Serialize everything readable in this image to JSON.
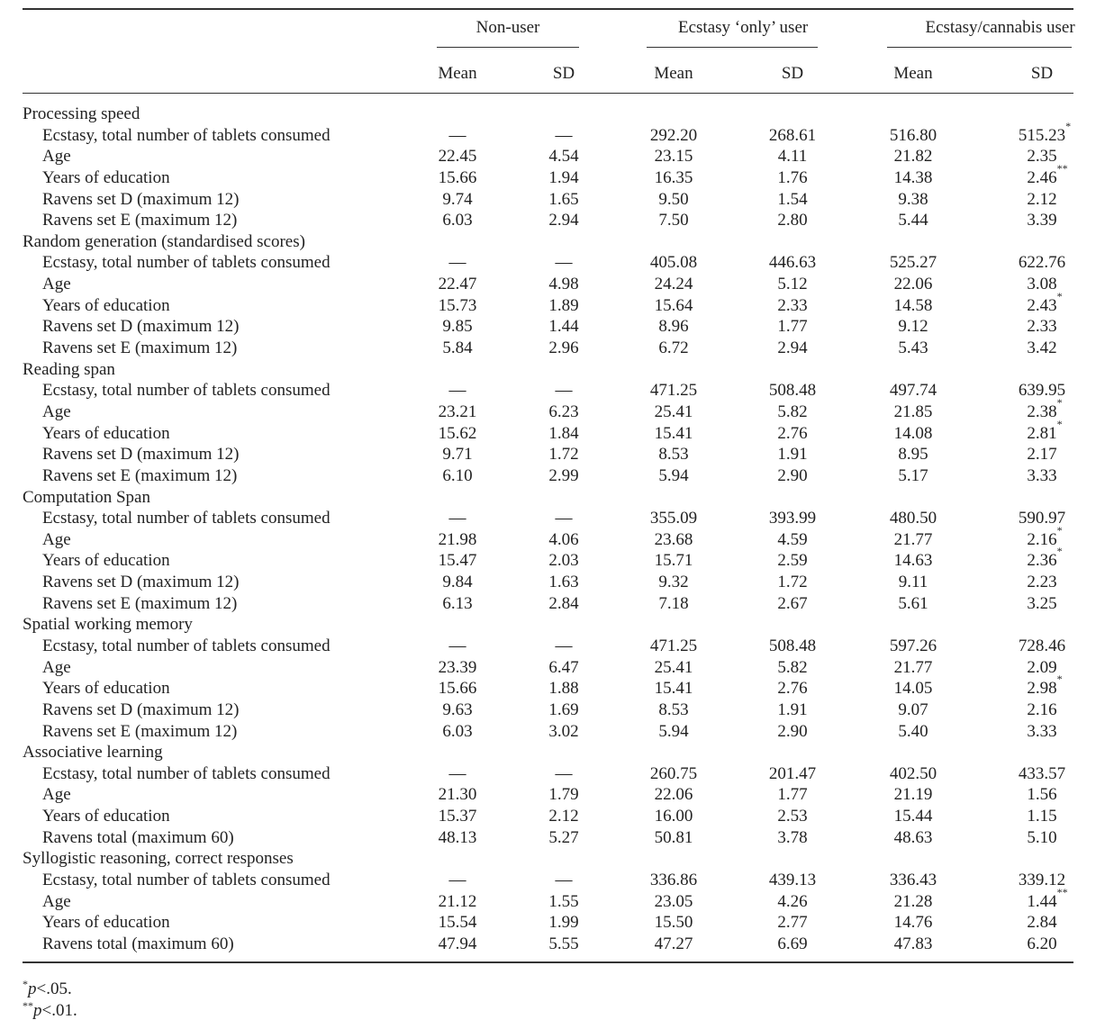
{
  "table": {
    "column_groups": [
      {
        "title": "Non-user",
        "columns": [
          "Mean",
          "SD"
        ]
      },
      {
        "title": "Ecstasy ‘only’ user",
        "columns": [
          "Mean",
          "SD"
        ]
      },
      {
        "title": "Ecstasy/cannabis user",
        "columns": [
          "Mean",
          "SD"
        ]
      }
    ],
    "sections": [
      {
        "title": "Processing speed",
        "rows": [
          {
            "label": "Ecstasy, total number of tablets consumed",
            "cells": [
              "—",
              "—",
              "292.20",
              "268.61",
              "516.80",
              {
                "value": "515.23",
                "sup": "*"
              }
            ]
          },
          {
            "label": "Age",
            "cells": [
              "22.45",
              "4.54",
              "23.15",
              "4.11",
              "21.82",
              "2.35"
            ]
          },
          {
            "label": "Years of education",
            "cells": [
              "15.66",
              "1.94",
              "16.35",
              "1.76",
              "14.38",
              {
                "value": "2.46",
                "sup": "**"
              }
            ]
          },
          {
            "label": "Ravens set D (maximum 12)",
            "cells": [
              "9.74",
              "1.65",
              "9.50",
              "1.54",
              "9.38",
              "2.12"
            ]
          },
          {
            "label": "Ravens set E (maximum 12)",
            "cells": [
              "6.03",
              "2.94",
              "7.50",
              "2.80",
              "5.44",
              "3.39"
            ]
          }
        ]
      },
      {
        "title": "Random generation (standardised scores)",
        "rows": [
          {
            "label": "Ecstasy, total number of tablets consumed",
            "cells": [
              "—",
              "—",
              "405.08",
              "446.63",
              "525.27",
              "622.76"
            ]
          },
          {
            "label": "Age",
            "cells": [
              "22.47",
              "4.98",
              "24.24",
              "5.12",
              "22.06",
              "3.08"
            ]
          },
          {
            "label": "Years of education",
            "cells": [
              "15.73",
              "1.89",
              "15.64",
              "2.33",
              "14.58",
              {
                "value": "2.43",
                "sup": "*"
              }
            ]
          },
          {
            "label": "Ravens set D (maximum 12)",
            "cells": [
              "9.85",
              "1.44",
              "8.96",
              "1.77",
              "9.12",
              "2.33"
            ]
          },
          {
            "label": "Ravens set E (maximum 12)",
            "cells": [
              "5.84",
              "2.96",
              "6.72",
              "2.94",
              "5.43",
              "3.42"
            ]
          }
        ]
      },
      {
        "title": "Reading span",
        "rows": [
          {
            "label": "Ecstasy, total number of tablets consumed",
            "cells": [
              "—",
              "—",
              "471.25",
              "508.48",
              "497.74",
              "639.95"
            ]
          },
          {
            "label": "Age",
            "cells": [
              "23.21",
              "6.23",
              "25.41",
              "5.82",
              "21.85",
              {
                "value": "2.38",
                "sup": "*"
              }
            ]
          },
          {
            "label": "Years of education",
            "cells": [
              "15.62",
              "1.84",
              "15.41",
              "2.76",
              "14.08",
              {
                "value": "2.81",
                "sup": "*"
              }
            ]
          },
          {
            "label": "Ravens set D (maximum 12)",
            "cells": [
              "9.71",
              "1.72",
              "8.53",
              "1.91",
              "8.95",
              "2.17"
            ]
          },
          {
            "label": "Ravens set E (maximum 12)",
            "cells": [
              "6.10",
              "2.99",
              "5.94",
              "2.90",
              "5.17",
              "3.33"
            ]
          }
        ]
      },
      {
        "title": "Computation Span",
        "rows": [
          {
            "label": "Ecstasy, total number of tablets consumed",
            "cells": [
              "—",
              "—",
              "355.09",
              "393.99",
              "480.50",
              "590.97"
            ]
          },
          {
            "label": "Age",
            "cells": [
              "21.98",
              "4.06",
              "23.68",
              "4.59",
              "21.77",
              {
                "value": "2.16",
                "sup": "*"
              }
            ]
          },
          {
            "label": "Years of education",
            "cells": [
              "15.47",
              "2.03",
              "15.71",
              "2.59",
              "14.63",
              {
                "value": "2.36",
                "sup": "*"
              }
            ]
          },
          {
            "label": "Ravens set D (maximum 12)",
            "cells": [
              "9.84",
              "1.63",
              "9.32",
              "1.72",
              "9.11",
              "2.23"
            ]
          },
          {
            "label": "Ravens set E (maximum 12)",
            "cells": [
              "6.13",
              "2.84",
              "7.18",
              "2.67",
              "5.61",
              "3.25"
            ]
          }
        ]
      },
      {
        "title": "Spatial working memory",
        "rows": [
          {
            "label": "Ecstasy, total number of tablets consumed",
            "cells": [
              "—",
              "—",
              "471.25",
              "508.48",
              "597.26",
              "728.46"
            ]
          },
          {
            "label": "Age",
            "cells": [
              "23.39",
              "6.47",
              "25.41",
              "5.82",
              "21.77",
              "2.09"
            ]
          },
          {
            "label": "Years of education",
            "cells": [
              "15.66",
              "1.88",
              "15.41",
              "2.76",
              "14.05",
              {
                "value": "2.98",
                "sup": "*"
              }
            ]
          },
          {
            "label": "Ravens set D (maximum 12)",
            "cells": [
              "9.63",
              "1.69",
              "8.53",
              "1.91",
              "9.07",
              "2.16"
            ]
          },
          {
            "label": "Ravens set E (maximum 12)",
            "cells": [
              "6.03",
              "3.02",
              "5.94",
              "2.90",
              "5.40",
              "3.33"
            ]
          }
        ]
      },
      {
        "title": "Associative learning",
        "rows": [
          {
            "label": "Ecstasy, total number of tablets consumed",
            "cells": [
              "—",
              "—",
              "260.75",
              "201.47",
              "402.50",
              "433.57"
            ]
          },
          {
            "label": "Age",
            "cells": [
              "21.30",
              "1.79",
              "22.06",
              "1.77",
              "21.19",
              "1.56"
            ]
          },
          {
            "label": "Years of education",
            "cells": [
              "15.37",
              "2.12",
              "16.00",
              "2.53",
              "15.44",
              "1.15"
            ]
          },
          {
            "label": "Ravens total (maximum 60)",
            "cells": [
              "48.13",
              "5.27",
              "50.81",
              "3.78",
              "48.63",
              "5.10"
            ]
          }
        ]
      },
      {
        "title": "Syllogistic reasoning, correct responses",
        "rows": [
          {
            "label": "Ecstasy, total number of tablets consumed",
            "cells": [
              "—",
              "—",
              "336.86",
              "439.13",
              "336.43",
              "339.12"
            ]
          },
          {
            "label": "Age",
            "cells": [
              "21.12",
              "1.55",
              "23.05",
              "4.26",
              "21.28",
              {
                "value": "1.44",
                "sup": "**"
              }
            ]
          },
          {
            "label": "Years of education",
            "cells": [
              "15.54",
              "1.99",
              "15.50",
              "2.77",
              "14.76",
              "2.84"
            ]
          },
          {
            "label": "Ravens total (maximum 60)",
            "cells": [
              "47.94",
              "5.55",
              "47.27",
              "6.69",
              "47.83",
              "6.20"
            ]
          }
        ]
      }
    ]
  },
  "footnotes": [
    {
      "sup": "*",
      "italic": "p",
      "text": "<.05."
    },
    {
      "sup": "**",
      "italic": "p",
      "text": "<.01."
    }
  ]
}
